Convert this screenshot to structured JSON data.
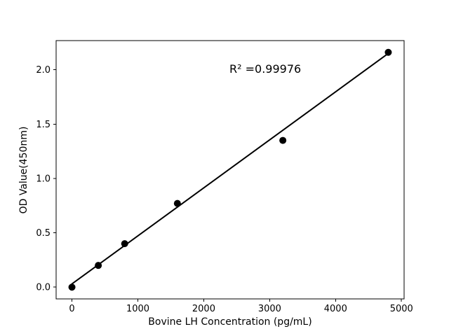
{
  "chart_data": {
    "type": "scatter",
    "title": "",
    "xlabel": "Bovine LH Concentration (pg/mL)",
    "ylabel": "OD Value(450nm)",
    "annotation": "R² =0.99976",
    "x": [
      0,
      400,
      800,
      1600,
      3200,
      4800
    ],
    "y": [
      0.0,
      0.2,
      0.4,
      0.77,
      1.35,
      2.16
    ],
    "fit_line": {
      "x": [
        0,
        4800
      ],
      "y": [
        0.03,
        2.15
      ]
    },
    "xlim": [
      -240,
      5040
    ],
    "ylim": [
      -0.108,
      2.268
    ],
    "xticks": [
      {
        "value": 0,
        "label": "0"
      },
      {
        "value": 1000,
        "label": "1000"
      },
      {
        "value": 2000,
        "label": "2000"
      },
      {
        "value": 3000,
        "label": "3000"
      },
      {
        "value": 4000,
        "label": "4000"
      },
      {
        "value": 5000,
        "label": "5000"
      }
    ],
    "yticks": [
      {
        "value": 0.0,
        "label": "0.0"
      },
      {
        "value": 0.5,
        "label": "0.5"
      },
      {
        "value": 1.0,
        "label": "1.0"
      },
      {
        "value": 1.5,
        "label": "1.5"
      },
      {
        "value": 2.0,
        "label": "2.0"
      }
    ],
    "grid": false,
    "legend": "none",
    "marker_color": "#000000",
    "line_color": "#000000",
    "axis_color": "#000000",
    "background": "#ffffff"
  }
}
